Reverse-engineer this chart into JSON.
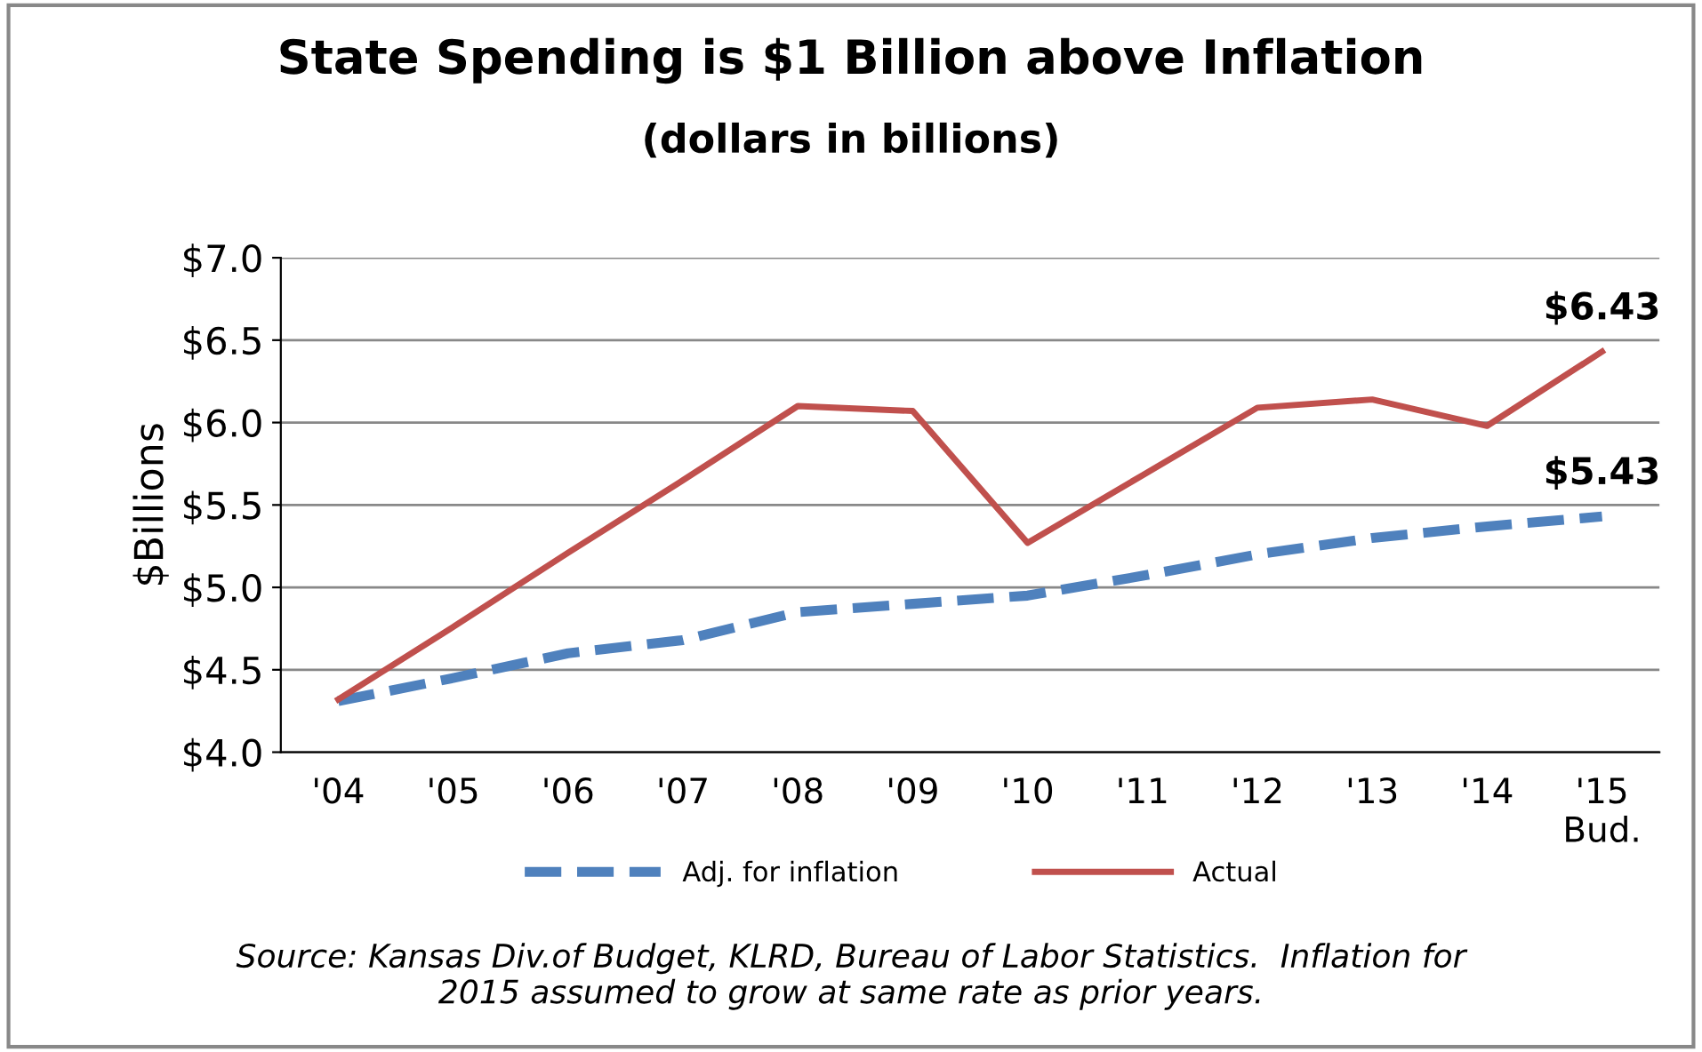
{
  "chart_data": {
    "type": "line",
    "title": "State Spending is $1 Billion above Inflation",
    "subtitle": "(dollars in billions)",
    "ylabel": "$Billions",
    "categories": [
      "'04",
      "'05",
      "'06",
      "'07",
      "'08",
      "'09",
      "'10",
      "'11",
      "'12",
      "'13",
      "'14",
      "'15\nBud."
    ],
    "series": [
      {
        "name": "Adj. for inflation",
        "color": "#4f81bd",
        "line_style": "dashed",
        "values": [
          4.31,
          4.45,
          4.6,
          4.68,
          4.85,
          4.9,
          4.95,
          5.07,
          5.2,
          5.3,
          5.37,
          5.43
        ]
      },
      {
        "name": "Actual",
        "color": "#c0504d",
        "line_style": "solid",
        "values": [
          4.32,
          4.76,
          5.21,
          5.65,
          6.1,
          6.07,
          5.27,
          5.68,
          6.09,
          6.14,
          5.98,
          6.43
        ]
      }
    ],
    "ylim": [
      4.0,
      7.0
    ],
    "yticks": [
      {
        "value": 4.0,
        "label": "$4.0"
      },
      {
        "value": 4.5,
        "label": "$4.5"
      },
      {
        "value": 5.0,
        "label": "$5.0"
      },
      {
        "value": 5.5,
        "label": "$5.5"
      },
      {
        "value": 6.0,
        "label": "$6.0"
      },
      {
        "value": 6.5,
        "label": "$6.5"
      },
      {
        "value": 7.0,
        "label": "$7.0"
      }
    ],
    "grid": "y",
    "legend": "bottom",
    "marker": "none",
    "annotations": [
      {
        "text": "$6.43",
        "x": "'15\nBud.",
        "y": 6.43
      },
      {
        "text": "$5.43",
        "x": "'15\nBud.",
        "y": 5.43
      },
      "Source: Kansas Div.of Budget, KLRD, Bureau of Labor Statistics.  Inflation for\n2015 assumed to grow at same rate as prior years."
    ]
  }
}
